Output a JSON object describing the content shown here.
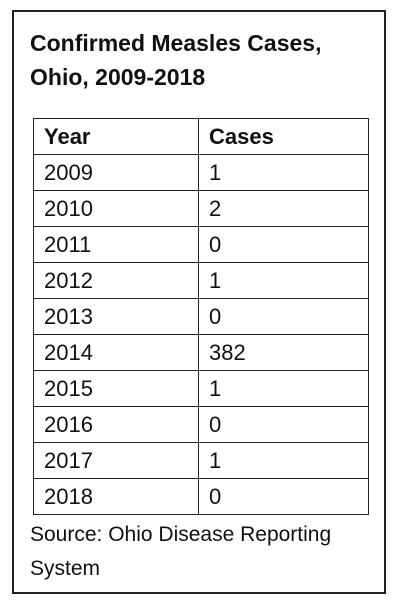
{
  "title": "Confirmed Measles Cases, Ohio, 2009-2018",
  "table": {
    "header": [
      "Year",
      "Cases"
    ],
    "rows": [
      [
        2009,
        1
      ],
      [
        2010,
        2
      ],
      [
        2011,
        0
      ],
      [
        2012,
        1
      ],
      [
        2013,
        0
      ],
      [
        2014,
        382
      ],
      [
        2015,
        1
      ],
      [
        2016,
        0
      ],
      [
        2017,
        1
      ],
      [
        2018,
        0
      ]
    ]
  },
  "source": "Source: Ohio Disease Reporting System"
}
